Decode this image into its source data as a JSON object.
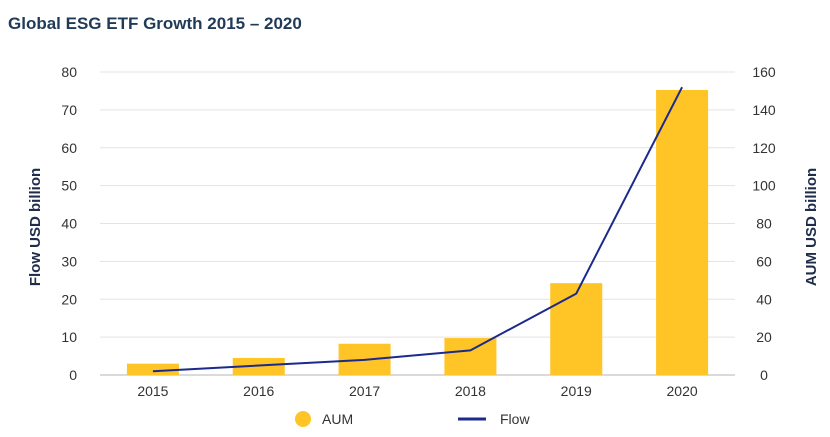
{
  "chart_data": {
    "type": "bar",
    "title": "Global ESG ETF Growth 2015 – 2020",
    "categories": [
      "2015",
      "2016",
      "2017",
      "2018",
      "2019",
      "2020"
    ],
    "series": [
      {
        "name": "AUM",
        "type": "bar",
        "axis": "right",
        "values": [
          6,
          9,
          16.5,
          19.5,
          48.5,
          150.5
        ],
        "color": "#ffc425"
      },
      {
        "name": "Flow",
        "type": "line",
        "axis": "left",
        "values": [
          1,
          2.5,
          4,
          6.5,
          21.5,
          76
        ],
        "color": "#1b2a8c"
      }
    ],
    "ylabel": "Flow USD billion",
    "ylabel_right": "AUM USD billion",
    "ylim": [
      0,
      80
    ],
    "ylim_right": [
      0,
      160
    ],
    "yticks": [
      "0",
      "10",
      "20",
      "30",
      "40",
      "50",
      "60",
      "70",
      "80"
    ],
    "yticks_right": [
      "0",
      "20",
      "40",
      "60",
      "80",
      "100",
      "120",
      "140",
      "160"
    ],
    "grid": true,
    "legend": "bottom-center"
  }
}
